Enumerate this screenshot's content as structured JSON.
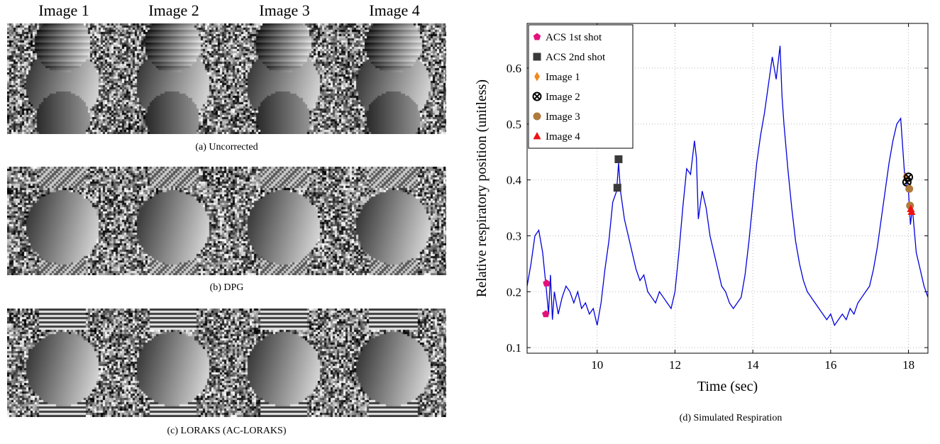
{
  "columns": [
    "Image 1",
    "Image 2",
    "Image 3",
    "Image 4"
  ],
  "panels": [
    {
      "caption": "(a) Uncorrected",
      "style": "uncorrected"
    },
    {
      "caption": "(b) DPG",
      "style": "dpg"
    },
    {
      "caption": "(c) LORAKS (AC-LORAKS)",
      "style": "loraks"
    }
  ],
  "chart_caption": "(d) Simulated Respiration",
  "chart_data": {
    "type": "line",
    "xlabel": "Time (sec)",
    "ylabel": "Relative respiratory position (unitless)",
    "xlim": [
      8.2,
      18.5
    ],
    "ylim": [
      0.09,
      0.68
    ],
    "xticks": [
      10,
      12,
      14,
      16,
      18
    ],
    "yticks": [
      0.1,
      0.2,
      0.3,
      0.4,
      0.5,
      0.6
    ],
    "grid": true,
    "legend_position": "top-left",
    "line_color": "#0000dd",
    "series": [
      {
        "x": [
          8.2,
          8.3,
          8.4,
          8.5,
          8.6,
          8.7,
          8.75,
          8.8,
          8.85,
          8.9,
          9.0,
          9.1,
          9.2,
          9.3,
          9.4,
          9.5,
          9.6,
          9.7,
          9.8,
          9.9,
          10.0,
          10.1,
          10.2,
          10.3,
          10.4,
          10.5,
          10.55,
          10.6,
          10.7,
          10.8,
          10.9,
          11.0,
          11.1,
          11.2,
          11.3,
          11.4,
          11.5,
          11.6,
          11.7,
          11.8,
          11.9,
          12.0,
          12.1,
          12.2,
          12.3,
          12.4,
          12.5,
          12.55,
          12.6,
          12.7,
          12.8,
          12.9,
          13.0,
          13.1,
          13.2,
          13.3,
          13.4,
          13.5,
          13.6,
          13.7,
          13.8,
          13.9,
          14.0,
          14.1,
          14.2,
          14.3,
          14.4,
          14.5,
          14.6,
          14.7,
          14.75,
          14.8,
          14.9,
          15.0,
          15.1,
          15.2,
          15.3,
          15.4,
          15.5,
          15.6,
          15.7,
          15.8,
          15.9,
          16.0,
          16.1,
          16.2,
          16.3,
          16.4,
          16.5,
          16.6,
          16.7,
          16.8,
          16.9,
          17.0,
          17.1,
          17.2,
          17.3,
          17.4,
          17.5,
          17.6,
          17.7,
          17.8,
          17.85,
          17.9,
          18.0,
          18.05,
          18.1,
          18.2,
          18.3,
          18.4,
          18.5
        ],
        "y": [
          0.21,
          0.25,
          0.3,
          0.31,
          0.27,
          0.2,
          0.16,
          0.23,
          0.15,
          0.2,
          0.16,
          0.19,
          0.21,
          0.2,
          0.18,
          0.2,
          0.17,
          0.18,
          0.16,
          0.17,
          0.14,
          0.18,
          0.24,
          0.29,
          0.36,
          0.38,
          0.43,
          0.38,
          0.33,
          0.3,
          0.27,
          0.24,
          0.22,
          0.23,
          0.2,
          0.19,
          0.18,
          0.2,
          0.19,
          0.18,
          0.17,
          0.2,
          0.27,
          0.35,
          0.42,
          0.41,
          0.47,
          0.44,
          0.33,
          0.38,
          0.35,
          0.3,
          0.27,
          0.24,
          0.21,
          0.2,
          0.18,
          0.17,
          0.18,
          0.19,
          0.23,
          0.29,
          0.36,
          0.43,
          0.48,
          0.52,
          0.57,
          0.62,
          0.58,
          0.64,
          0.55,
          0.5,
          0.42,
          0.35,
          0.29,
          0.25,
          0.22,
          0.2,
          0.19,
          0.18,
          0.17,
          0.16,
          0.15,
          0.16,
          0.14,
          0.15,
          0.16,
          0.15,
          0.17,
          0.16,
          0.18,
          0.19,
          0.2,
          0.21,
          0.24,
          0.28,
          0.33,
          0.38,
          0.43,
          0.47,
          0.5,
          0.51,
          0.46,
          0.41,
          0.38,
          0.32,
          0.35,
          0.27,
          0.24,
          0.21,
          0.19
        ]
      }
    ],
    "markers": [
      {
        "name": "ACS 1st shot",
        "symbol": "pentagon",
        "color": "#e3127a",
        "points": [
          [
            8.7,
            0.215
          ],
          [
            8.68,
            0.16
          ]
        ]
      },
      {
        "name": "ACS 2nd shot",
        "symbol": "square",
        "color": "#3a3a3a",
        "points": [
          [
            10.55,
            0.437
          ],
          [
            10.52,
            0.386
          ]
        ]
      },
      {
        "name": "Image 1",
        "symbol": "diamond",
        "color": "#f08a1c",
        "points": [
          [
            17.92,
            0.406
          ]
        ]
      },
      {
        "name": "Image 2",
        "symbol": "otimes",
        "color": "#000000",
        "points": [
          [
            18.0,
            0.405
          ],
          [
            17.96,
            0.396
          ]
        ]
      },
      {
        "name": "Image 3",
        "symbol": "circle",
        "color": "#b07a3d",
        "points": [
          [
            18.02,
            0.384
          ],
          [
            18.04,
            0.354
          ]
        ]
      },
      {
        "name": "Image 4",
        "symbol": "triangle",
        "color": "#ee1111",
        "points": [
          [
            18.08,
            0.343
          ],
          [
            18.06,
            0.348
          ]
        ]
      }
    ]
  }
}
